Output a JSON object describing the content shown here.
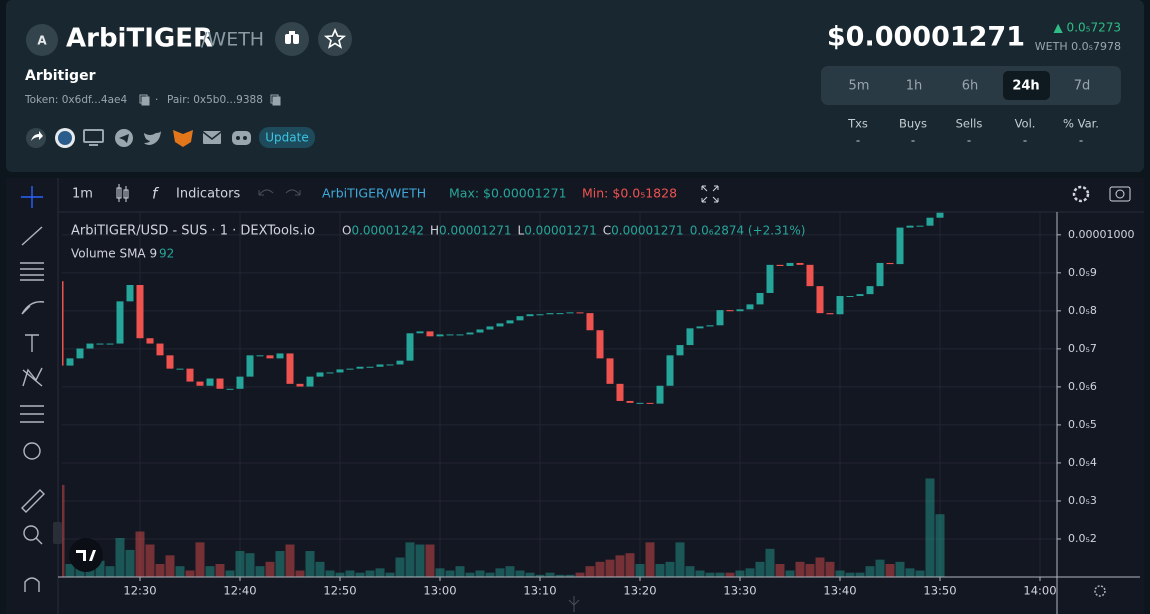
{
  "header": {
    "avatar": "A",
    "name": "ArbiTIGER",
    "quote": "/WETH",
    "subtitle": "Arbitiger",
    "token": "Token: 0x6df...4ae4",
    "separator": "·",
    "pair": "Pair: 0x5b0...9388",
    "update": "Update",
    "price": "$0.00001271",
    "change": "▲ 0.0₅7273",
    "weth": "WETH 0.0₅7978",
    "timeframes": [
      "5m",
      "1h",
      "6h",
      "24h",
      "7d"
    ],
    "active_timeframe": 3,
    "stats": [
      {
        "label": "Txs",
        "value": "-"
      },
      {
        "label": "Buys",
        "value": "-"
      },
      {
        "label": "Sells",
        "value": "-"
      },
      {
        "label": "Vol.",
        "value": "-"
      },
      {
        "label": "% Var.",
        "value": "-"
      }
    ]
  },
  "toolbar": {
    "interval": "1m",
    "indicators": "Indicators",
    "pair": "ArbiTIGER/WETH",
    "max": "Max: $0.00001271",
    "min": "Min: $0.0₅1828"
  },
  "legend": {
    "title": "ArbiTIGER/USD - SUS · 1 · DEXTools.io",
    "ohlc": [
      {
        "label": "O",
        "value": "0.00001242"
      },
      {
        "label": "H",
        "value": "0.00001271"
      },
      {
        "label": "L",
        "value": "0.00001271"
      },
      {
        "label": "C",
        "value": "0.00001271"
      }
    ],
    "change": "0.0₆2874 (+2.31%)",
    "volume_label": "Volume SMA 9",
    "volume_value": "92"
  },
  "chart_data": {
    "type": "candlestick",
    "up_color": "#26a69a",
    "down_color": "#ef5350",
    "grid": true,
    "x": [
      "12:22",
      "12:23",
      "12:24",
      "12:25",
      "12:26",
      "12:27",
      "12:28",
      "12:29",
      "12:30",
      "12:31",
      "12:32",
      "12:33",
      "12:34",
      "12:35",
      "12:36",
      "12:37",
      "12:38",
      "12:39",
      "12:40",
      "12:41",
      "12:42",
      "12:43",
      "12:44",
      "12:45",
      "12:46",
      "12:47",
      "12:48",
      "12:49",
      "12:50",
      "12:51",
      "12:52",
      "12:53",
      "12:54",
      "12:55",
      "12:56",
      "12:57",
      "12:58",
      "12:59",
      "13:00",
      "13:01",
      "13:02",
      "13:03",
      "13:04",
      "13:05",
      "13:06",
      "13:07",
      "13:08",
      "13:09",
      "13:10",
      "13:11",
      "13:12",
      "13:13",
      "13:14",
      "13:15",
      "13:16",
      "13:17",
      "13:18",
      "13:19",
      "13:20",
      "13:21",
      "13:22",
      "13:23",
      "13:24",
      "13:25",
      "13:26",
      "13:27",
      "13:28",
      "13:29",
      "13:30",
      "13:31",
      "13:32",
      "13:33",
      "13:34",
      "13:35",
      "13:36",
      "13:37",
      "13:38",
      "13:39",
      "13:40",
      "13:41",
      "13:42",
      "13:43",
      "13:44",
      "13:45",
      "13:46",
      "13:47",
      "13:48",
      "13:49",
      "13:50"
    ],
    "open": [
      8.78e-06,
      6.56e-06,
      6.75e-06,
      7.01e-06,
      7.14e-06,
      7.14e-06,
      7.14e-06,
      8.25e-06,
      8.68e-06,
      7.28e-06,
      7.14e-06,
      6.83e-06,
      6.48e-06,
      6.48e-06,
      6.14e-06,
      6.03e-06,
      6.22e-06,
      5.95e-06,
      5.95e-06,
      6.27e-06,
      6.83e-06,
      6.83e-06,
      6.75e-06,
      6.88e-06,
      6.08e-06,
      6.01e-06,
      6.27e-06,
      6.38e-06,
      6.38e-06,
      6.46e-06,
      6.48e-06,
      6.53e-06,
      6.53e-06,
      6.59e-06,
      6.59e-06,
      6.69e-06,
      7.41e-06,
      7.46e-06,
      7.33e-06,
      7.38e-06,
      7.38e-06,
      7.38e-06,
      7.43e-06,
      7.51e-06,
      7.59e-06,
      7.67e-06,
      7.75e-06,
      7.86e-06,
      7.91e-06,
      7.91e-06,
      7.94e-06,
      7.94e-06,
      7.96e-06,
      7.94e-06,
      7.49e-06,
      6.75e-06,
      6.08e-06,
      5.63e-06,
      5.58e-06,
      5.58e-06,
      5.56e-06,
      6.03e-06,
      6.83e-06,
      7.1e-06,
      7.54e-06,
      7.59e-06,
      7.62e-06,
      8.02e-06,
      7.99e-06,
      8.04e-06,
      8.17e-06,
      8.47e-06,
      9.21e-06,
      9.18e-06,
      9.26e-06,
      9.21e-06,
      8.65e-06,
      7.94e-06,
      7.91e-06,
      8.39e-06,
      8.39e-06,
      8.44e-06,
      8.65e-06,
      9.26e-06,
      9.23e-06,
      1.019e-05,
      1.024e-05,
      1.024e-05,
      1.045e-05
    ],
    "close": [
      6.56e-06,
      6.75e-06,
      7.01e-06,
      7.14e-06,
      7.14e-06,
      7.14e-06,
      8.25e-06,
      8.68e-06,
      7.28e-06,
      7.14e-06,
      6.83e-06,
      6.48e-06,
      6.48e-06,
      6.14e-06,
      6.03e-06,
      6.22e-06,
      5.95e-06,
      5.95e-06,
      6.27e-06,
      6.83e-06,
      6.83e-06,
      6.75e-06,
      6.88e-06,
      6.08e-06,
      6.01e-06,
      6.27e-06,
      6.38e-06,
      6.38e-06,
      6.46e-06,
      6.48e-06,
      6.53e-06,
      6.53e-06,
      6.59e-06,
      6.59e-06,
      6.69e-06,
      7.41e-06,
      7.46e-06,
      7.33e-06,
      7.38e-06,
      7.38e-06,
      7.38e-06,
      7.43e-06,
      7.51e-06,
      7.59e-06,
      7.67e-06,
      7.75e-06,
      7.86e-06,
      7.91e-06,
      7.91e-06,
      7.94e-06,
      7.94e-06,
      7.96e-06,
      7.94e-06,
      7.49e-06,
      6.75e-06,
      6.08e-06,
      5.63e-06,
      5.58e-06,
      5.58e-06,
      5.56e-06,
      6.03e-06,
      6.83e-06,
      7.1e-06,
      7.54e-06,
      7.59e-06,
      7.62e-06,
      8.02e-06,
      7.99e-06,
      8.04e-06,
      8.17e-06,
      8.47e-06,
      9.21e-06,
      9.18e-06,
      9.26e-06,
      9.21e-06,
      8.65e-06,
      7.94e-06,
      7.91e-06,
      8.39e-06,
      8.39e-06,
      8.44e-06,
      8.65e-06,
      9.26e-06,
      9.23e-06,
      1.019e-05,
      1.024e-05,
      1.024e-05,
      1.045e-05,
      1.058e-05
    ],
    "volume": [
      85,
      12,
      10,
      8,
      15,
      10,
      36,
      25,
      42,
      30,
      12,
      20,
      10,
      6,
      32,
      10,
      12,
      6,
      24,
      22,
      10,
      14,
      24,
      30,
      6,
      24,
      14,
      6,
      4,
      6,
      4,
      6,
      8,
      4,
      18,
      32,
      30,
      30,
      8,
      6,
      10,
      4,
      6,
      4,
      8,
      10,
      6,
      4,
      2,
      4,
      2,
      2,
      4,
      10,
      14,
      16,
      20,
      22,
      12,
      32,
      12,
      14,
      32,
      10,
      6,
      4,
      4,
      4,
      6,
      8,
      14,
      26,
      12,
      6,
      14,
      12,
      18,
      14,
      6,
      4,
      4,
      10,
      16,
      12,
      14,
      8,
      6,
      91,
      58
    ],
    "xlim": [
      "12:22",
      "14:02"
    ],
    "xticks": [
      "12:30",
      "12:40",
      "12:50",
      "13:00",
      "13:10",
      "13:20",
      "13:30",
      "13:40",
      "13:50",
      "14:00"
    ],
    "ylim": [
      1e-06,
      1.06e-05
    ],
    "yticks": [
      {
        "value": 1e-05,
        "label": "0.00001000"
      },
      {
        "value": 9e-06,
        "label": "0.0₅9"
      },
      {
        "value": 8e-06,
        "label": "0.0₅8"
      },
      {
        "value": 7e-06,
        "label": "0.0₅7"
      },
      {
        "value": 6e-06,
        "label": "0.0₅6"
      },
      {
        "value": 5e-06,
        "label": "0.0₅5"
      },
      {
        "value": 4e-06,
        "label": "0.0₅4"
      },
      {
        "value": 3e-06,
        "label": "0.0₅3"
      },
      {
        "value": 2e-06,
        "label": "0.0₅2"
      }
    ]
  }
}
